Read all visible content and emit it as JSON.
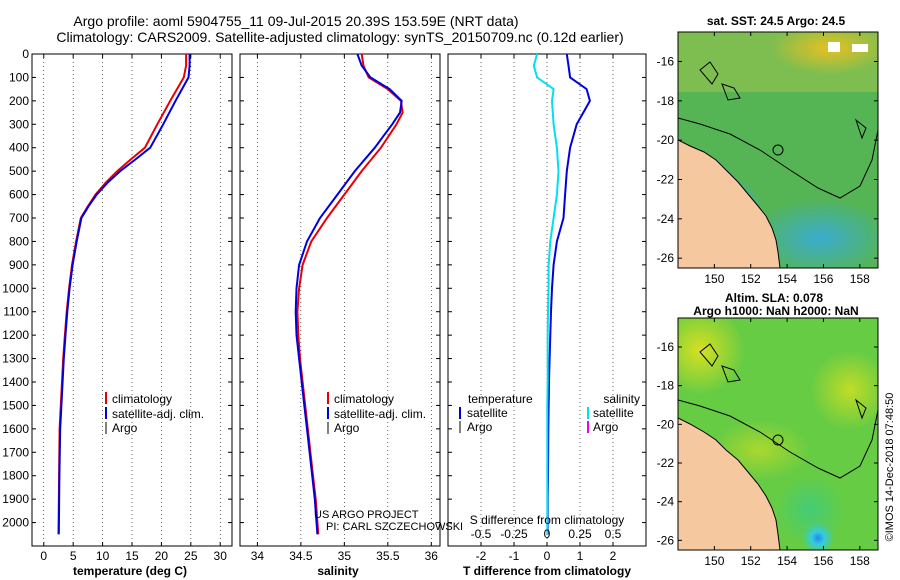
{
  "header": {
    "line1": "Argo profile: aoml 5904755_11 09-Jul-2015 20.39S 153.59E (NRT data)",
    "line2": "Climatology: CARS2009. Satellite-adjusted climatology: synTS_20150709.nc (0.12d earlier)"
  },
  "side_label": "©IMOS 14-Dec-2018 07:48:50",
  "credit": {
    "line1": "US ARGO PROJECT",
    "line2": "PI: CARL SZCZECHOWSKI"
  },
  "colors": {
    "climatology": "#e60000",
    "satellite": "#0000dd",
    "argo": "#000000",
    "cyan": "#00e0ee",
    "magenta": "#ee00ee",
    "land": "#f5c8a0"
  },
  "chart_data": [
    {
      "type": "line",
      "name": "temperature",
      "xlabel": "temperature (deg C)",
      "ylabel": "",
      "xlim": [
        -2,
        32
      ],
      "ylim": [
        2100,
        0
      ],
      "xticks": [
        "0",
        "5",
        "10",
        "15",
        "20",
        "25",
        "30"
      ],
      "xtick_values": [
        0,
        5,
        10,
        15,
        20,
        25,
        30
      ],
      "yticks": [
        "0",
        "100",
        "200",
        "300",
        "400",
        "500",
        "600",
        "700",
        "800",
        "900",
        "1000",
        "1100",
        "1200",
        "1300",
        "1400",
        "1500",
        "1600",
        "1700",
        "1800",
        "1900",
        "2000"
      ],
      "ytick_values": [
        0,
        100,
        200,
        300,
        400,
        500,
        600,
        700,
        800,
        900,
        1000,
        1100,
        1200,
        1300,
        1400,
        1500,
        1600,
        1700,
        1800,
        1900,
        2000
      ],
      "legend": [
        "climatology",
        "satellite-adj. clim.",
        "Argo"
      ],
      "series": [
        {
          "name": "climatology",
          "color": "#e60000",
          "x": [
            24.2,
            24.2,
            23.8,
            21.5,
            19.3,
            17.2,
            14.8,
            12.5,
            10.5,
            8.8,
            7.5,
            6.3,
            5.5,
            4.8,
            4.3,
            3.9,
            3.6,
            3.3,
            3.1,
            2.9,
            2.7,
            2.6,
            2.5
          ],
          "y": [
            0,
            50,
            100,
            200,
            300,
            400,
            450,
            500,
            550,
            600,
            650,
            700,
            800,
            900,
            1000,
            1100,
            1200,
            1300,
            1400,
            1500,
            1600,
            1800,
            2050
          ]
        },
        {
          "name": "satellite-adj. clim.",
          "color": "#0000dd",
          "x": [
            24.8,
            24.8,
            24.6,
            22.4,
            20.3,
            18.1,
            15.6,
            13.0,
            10.8,
            9.0,
            7.6,
            6.4,
            5.6,
            4.9,
            4.4,
            4.0,
            3.7,
            3.4,
            3.2,
            3.0,
            2.8,
            2.65,
            2.55
          ],
          "y": [
            0,
            50,
            100,
            200,
            300,
            400,
            450,
            500,
            550,
            600,
            650,
            700,
            800,
            900,
            1000,
            1100,
            1200,
            1300,
            1400,
            1500,
            1600,
            1800,
            2050
          ]
        }
      ]
    },
    {
      "type": "line",
      "name": "salinity",
      "xlabel": "salinity",
      "xlim": [
        33.8,
        36.1
      ],
      "ylim": [
        2100,
        0
      ],
      "xticks": [
        "34",
        "34.5",
        "35",
        "35.5",
        "36"
      ],
      "xtick_values": [
        34,
        34.5,
        35,
        35.5,
        36
      ],
      "legend": [
        "climatology",
        "satellite-adj. clim.",
        "Argo"
      ],
      "series": [
        {
          "name": "climatology",
          "color": "#e60000",
          "x": [
            35.2,
            35.22,
            35.28,
            35.5,
            35.65,
            35.67,
            35.6,
            35.42,
            35.2,
            35.0,
            34.8,
            34.62,
            34.52,
            34.48,
            34.46,
            34.47,
            34.49,
            34.52,
            34.55,
            34.58,
            34.61,
            34.64,
            34.67,
            34.7
          ],
          "y": [
            0,
            50,
            100,
            150,
            200,
            250,
            300,
            400,
            500,
            600,
            700,
            800,
            900,
            1000,
            1100,
            1200,
            1300,
            1400,
            1500,
            1600,
            1700,
            1800,
            1900,
            2050
          ]
        },
        {
          "name": "satellite-adj. clim.",
          "color": "#0000dd",
          "x": [
            35.15,
            35.2,
            35.3,
            35.52,
            35.66,
            35.64,
            35.55,
            35.35,
            35.12,
            34.92,
            34.72,
            34.57,
            34.48,
            34.45,
            34.44,
            34.45,
            34.48,
            34.51,
            34.54,
            34.57,
            34.6,
            34.63,
            34.66,
            34.69
          ],
          "y": [
            0,
            50,
            100,
            150,
            200,
            250,
            300,
            400,
            500,
            600,
            700,
            800,
            900,
            1000,
            1100,
            1200,
            1300,
            1400,
            1500,
            1600,
            1700,
            1800,
            1900,
            2050
          ]
        }
      ]
    },
    {
      "type": "line",
      "name": "difference",
      "xlabel": "T difference from climatology",
      "inner_label": "S difference from climatology",
      "xlim": [
        -3,
        3
      ],
      "ylim": [
        2100,
        0
      ],
      "xticks": [
        "-2",
        "-1",
        "0",
        "1",
        "2"
      ],
      "xtick_values": [
        -2,
        -1,
        0,
        1,
        2
      ],
      "inner_ticks": [
        "-0.5",
        "-0.25",
        "0",
        "0.25",
        "0.5"
      ],
      "inner_tick_values": [
        -2,
        -1,
        0,
        1,
        2
      ],
      "legend_left_title": "temperature",
      "legend_right_title": "salinity",
      "legend_left": [
        "satellite",
        "Argo"
      ],
      "legend_right": [
        "satellite",
        "Argo"
      ],
      "series": [
        {
          "name": "T satellite",
          "color": "#0000dd",
          "x": [
            0.6,
            0.65,
            0.7,
            1.2,
            1.3,
            1.1,
            0.9,
            0.7,
            0.6,
            0.55,
            0.5,
            0.4,
            0.3,
            0.2,
            0.15,
            0.12,
            0.1,
            0.08,
            0.06,
            0.05,
            0.04,
            0.03,
            0.02,
            0.02
          ],
          "y": [
            0,
            50,
            100,
            150,
            200,
            250,
            300,
            400,
            500,
            600,
            700,
            750,
            800,
            900,
            1000,
            1100,
            1200,
            1300,
            1400,
            1500,
            1600,
            1800,
            1900,
            2050
          ]
        },
        {
          "name": "S satellite",
          "color": "#00e0ee",
          "x": [
            -0.3,
            -0.4,
            -0.3,
            0.2,
            0.15,
            0.2,
            0.3,
            0.35,
            0.3,
            0.2,
            0.1,
            0.05,
            0.05,
            0.03,
            0.02,
            0.02,
            0.02,
            0.01,
            0.01,
            0.01,
            0.01,
            0.01
          ],
          "y": [
            0,
            50,
            100,
            150,
            200,
            300,
            400,
            500,
            600,
            700,
            800,
            900,
            1000,
            1100,
            1200,
            1300,
            1400,
            1500,
            1600,
            1700,
            1900,
            2050
          ]
        }
      ]
    },
    {
      "type": "heatmap",
      "name": "sst-map",
      "title": "sat. SST: 24.5  Argo: 24.5",
      "xticks": [
        "150",
        "152",
        "154",
        "156",
        "158"
      ],
      "yticks": [
        "-16",
        "-18",
        "-20",
        "-22",
        "-24",
        "-26"
      ],
      "xlim": [
        148,
        159
      ],
      "ylim": [
        -26.5,
        -14.5
      ]
    },
    {
      "type": "heatmap",
      "name": "sla-map",
      "title_line1": "Altim. SLA: 0.078",
      "title_line2": "Argo h1000: NaN  h2000: NaN",
      "xticks": [
        "150",
        "152",
        "154",
        "156",
        "158"
      ],
      "yticks": [
        "-16",
        "-18",
        "-20",
        "-22",
        "-24",
        "-26"
      ],
      "xlim": [
        148,
        159
      ],
      "ylim": [
        -26.5,
        -14.5
      ]
    }
  ]
}
